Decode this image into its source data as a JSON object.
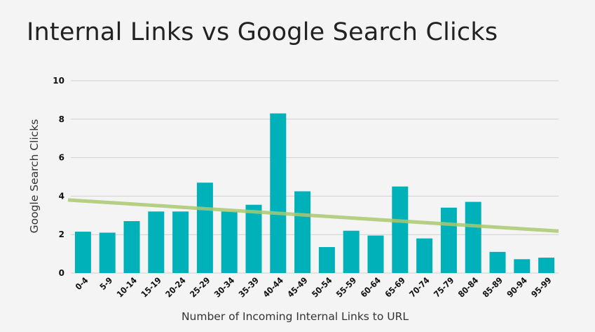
{
  "chart_data": {
    "type": "bar",
    "title": "Internal Links vs Google Search Clicks",
    "xlabel": "Number of Incoming Internal Links to URL",
    "ylabel": "Google Search Clicks",
    "ylim": [
      0,
      10
    ],
    "yticks": [
      0,
      2,
      4,
      6,
      8,
      10
    ],
    "grid": true,
    "categories": [
      "0-4",
      "5-9",
      "10-14",
      "15-19",
      "20-24",
      "25-29",
      "30-34",
      "35-39",
      "40-44",
      "45-49",
      "50-54",
      "55-59",
      "60-64",
      "65-69",
      "70-74",
      "75-79",
      "80-84",
      "85-89",
      "90-94",
      "95-99"
    ],
    "values": [
      2.15,
      2.1,
      2.7,
      3.2,
      3.2,
      4.7,
      3.2,
      3.55,
      8.3,
      4.25,
      1.35,
      2.2,
      1.95,
      4.5,
      1.8,
      3.4,
      3.7,
      1.1,
      0.72,
      0.8
    ],
    "trendline": {
      "type": "linear",
      "start_value": 3.8,
      "end_value": 2.18
    },
    "colors": {
      "bar": "#00b1ba",
      "trendline": "#a9c86f",
      "grid": "#d0d0d0",
      "background": "#f4f4f4"
    }
  }
}
